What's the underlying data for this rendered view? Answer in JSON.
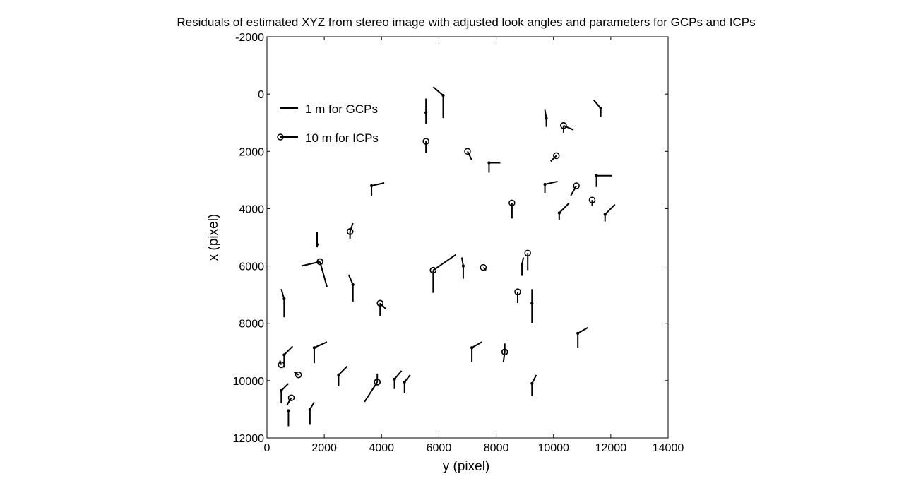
{
  "chart_data": {
    "type": "scatter",
    "title": "Residuals of estimated XYZ from stereo image with adjusted look angles and parameters for GCPs and ICPs",
    "xlabel": "y (pixel)",
    "ylabel": "x (pixel)",
    "xlim": [
      0,
      14000
    ],
    "ylim": [
      -2000,
      12000
    ],
    "y_reversed": true,
    "x_ticks": [
      0,
      2000,
      4000,
      6000,
      8000,
      10000,
      12000,
      14000
    ],
    "y_ticks": [
      -2000,
      0,
      2000,
      4000,
      6000,
      8000,
      10000,
      12000
    ],
    "grid": false,
    "legend_position": "top-left",
    "legend": [
      {
        "label": "1 m for GCPs",
        "marker": "dot"
      },
      {
        "label": "10 m for ICPs",
        "marker": "circle"
      }
    ],
    "series": [
      {
        "name": "1 m for GCPs",
        "marker": "dot",
        "points": [
          {
            "y": 6150,
            "x": 50,
            "dy": -350,
            "dx": -300
          },
          {
            "y": 6150,
            "x": 50,
            "dy": 0,
            "dx": 800
          },
          {
            "y": 5550,
            "x": 650,
            "dy": 0,
            "dx": -500
          },
          {
            "y": 5550,
            "x": 650,
            "dy": 0,
            "dx": 400
          },
          {
            "y": 9750,
            "x": 850,
            "dy": -50,
            "dx": -300
          },
          {
            "y": 9750,
            "x": 850,
            "dy": 0,
            "dx": 300
          },
          {
            "y": 11650,
            "x": 500,
            "dy": -250,
            "dx": -300
          },
          {
            "y": 11650,
            "x": 500,
            "dy": 0,
            "dx": 300
          },
          {
            "y": 7750,
            "x": 2400,
            "dy": 400,
            "dx": 0
          },
          {
            "y": 7750,
            "x": 2400,
            "dy": 0,
            "dx": 350
          },
          {
            "y": 3650,
            "x": 3200,
            "dy": 450,
            "dx": -100
          },
          {
            "y": 3650,
            "x": 3200,
            "dy": 0,
            "dx": 350
          },
          {
            "y": 9700,
            "x": 3150,
            "dy": 450,
            "dx": -100
          },
          {
            "y": 9700,
            "x": 3150,
            "dy": 0,
            "dx": 300
          },
          {
            "y": 11500,
            "x": 2850,
            "dy": 550,
            "dx": 0
          },
          {
            "y": 11500,
            "x": 2850,
            "dy": 0,
            "dx": 400
          },
          {
            "y": 10200,
            "x": 4150,
            "dy": 350,
            "dx": -350
          },
          {
            "y": 10200,
            "x": 4150,
            "dy": 0,
            "dx": 250
          },
          {
            "y": 11800,
            "x": 4200,
            "dy": 350,
            "dx": -350
          },
          {
            "y": 11800,
            "x": 4200,
            "dy": 0,
            "dx": 250
          },
          {
            "y": 1750,
            "x": 5250,
            "dy": 0,
            "dx": -450
          },
          {
            "y": 1750,
            "x": 5250,
            "dy": 0,
            "dx": 100
          },
          {
            "y": 3000,
            "x": 6650,
            "dy": -150,
            "dx": -350
          },
          {
            "y": 3000,
            "x": 6650,
            "dy": 0,
            "dx": 600
          },
          {
            "y": 6850,
            "x": 6000,
            "dy": -50,
            "dx": -300
          },
          {
            "y": 6850,
            "x": 6000,
            "dy": 0,
            "dx": 450
          },
          {
            "y": 8900,
            "x": 5950,
            "dy": 50,
            "dx": -250
          },
          {
            "y": 8900,
            "x": 5950,
            "dy": 0,
            "dx": 400
          },
          {
            "y": 600,
            "x": 7150,
            "dy": -100,
            "dx": -350
          },
          {
            "y": 600,
            "x": 7150,
            "dy": 0,
            "dx": 650
          },
          {
            "y": 9250,
            "x": 7300,
            "dy": 0,
            "dx": -500
          },
          {
            "y": 9250,
            "x": 7300,
            "dy": 0,
            "dx": 700
          },
          {
            "y": 10850,
            "x": 8350,
            "dy": 350,
            "dx": -200
          },
          {
            "y": 10850,
            "x": 8350,
            "dy": 0,
            "dx": 500
          },
          {
            "y": 1650,
            "x": 8850,
            "dy": 450,
            "dx": -200
          },
          {
            "y": 1650,
            "x": 8850,
            "dy": 0,
            "dx": 550
          },
          {
            "y": 7150,
            "x": 8850,
            "dy": 350,
            "dx": -200
          },
          {
            "y": 7150,
            "x": 8850,
            "dy": 0,
            "dx": 500
          },
          {
            "y": 600,
            "x": 9100,
            "dy": 300,
            "dx": -300
          },
          {
            "y": 600,
            "x": 9100,
            "dy": 0,
            "dx": 450
          },
          {
            "y": 2500,
            "x": 9800,
            "dy": 300,
            "dx": -300
          },
          {
            "y": 2500,
            "x": 9800,
            "dy": 0,
            "dx": 400
          },
          {
            "y": 4450,
            "x": 9950,
            "dy": 250,
            "dx": -300
          },
          {
            "y": 4450,
            "x": 9950,
            "dy": 0,
            "dx": 350
          },
          {
            "y": 4800,
            "x": 10050,
            "dy": 200,
            "dx": -250
          },
          {
            "y": 4800,
            "x": 10050,
            "dy": 0,
            "dx": 400
          },
          {
            "y": 9250,
            "x": 10100,
            "dy": 150,
            "dx": -300
          },
          {
            "y": 9250,
            "x": 10100,
            "dy": 0,
            "dx": 450
          },
          {
            "y": 500,
            "x": 10350,
            "dy": 250,
            "dx": -250
          },
          {
            "y": 500,
            "x": 10350,
            "dy": 0,
            "dx": 450
          },
          {
            "y": 1500,
            "x": 11000,
            "dy": 150,
            "dx": -250
          },
          {
            "y": 1500,
            "x": 11000,
            "dy": 0,
            "dx": 550
          },
          {
            "y": 750,
            "x": 11050,
            "dy": 0,
            "dx": 0
          },
          {
            "y": 750,
            "x": 11050,
            "dy": 0,
            "dx": 550
          }
        ]
      },
      {
        "name": "10 m for ICPs",
        "marker": "circle",
        "points": [
          {
            "y": 5550,
            "x": 1650,
            "dy": 0,
            "dx": 400
          },
          {
            "y": 7000,
            "x": 2000,
            "dy": 150,
            "dx": 300
          },
          {
            "y": 10350,
            "x": 1100,
            "dy": 350,
            "dx": 150
          },
          {
            "y": 10350,
            "x": 1100,
            "dy": 0,
            "dx": 250
          },
          {
            "y": 10100,
            "x": 2150,
            "dy": -200,
            "dx": 200
          },
          {
            "y": 10800,
            "x": 3200,
            "dy": -200,
            "dx": 350
          },
          {
            "y": 11350,
            "x": 3700,
            "dy": 0,
            "dx": 200
          },
          {
            "y": 8550,
            "x": 3800,
            "dy": 0,
            "dx": 550
          },
          {
            "y": 2900,
            "x": 4800,
            "dy": 100,
            "dx": -300
          },
          {
            "y": 2900,
            "x": 4800,
            "dy": 0,
            "dx": 250
          },
          {
            "y": 1850,
            "x": 5850,
            "dy": 250,
            "dx": 900
          },
          {
            "y": 1850,
            "x": 5850,
            "dy": -650,
            "dx": 150
          },
          {
            "y": 5800,
            "x": 6150,
            "dy": 800,
            "dx": -550
          },
          {
            "y": 5800,
            "x": 6150,
            "dy": 0,
            "dx": 800
          },
          {
            "y": 7550,
            "x": 6050,
            "dy": 100,
            "dx": 100
          },
          {
            "y": 9100,
            "x": 5550,
            "dy": 0,
            "dx": 600
          },
          {
            "y": 8750,
            "x": 6900,
            "dy": 0,
            "dx": 400
          },
          {
            "y": 3950,
            "x": 7300,
            "dy": 200,
            "dx": 200
          },
          {
            "y": 3950,
            "x": 7300,
            "dy": 0,
            "dx": 450
          },
          {
            "y": 8300,
            "x": 9000,
            "dy": 0,
            "dx": -300
          },
          {
            "y": 8300,
            "x": 9000,
            "dy": -50,
            "dx": 350
          },
          {
            "y": 1100,
            "x": 9800,
            "dy": -150,
            "dx": -100
          },
          {
            "y": 3850,
            "x": 10050,
            "dy": -450,
            "dx": 700
          },
          {
            "y": 3850,
            "x": 10050,
            "dy": 0,
            "dx": -300
          },
          {
            "y": 500,
            "x": 9450,
            "dy": -50,
            "dx": -150
          },
          {
            "y": 850,
            "x": 10600,
            "dy": -150,
            "dx": 250
          }
        ]
      }
    ]
  }
}
